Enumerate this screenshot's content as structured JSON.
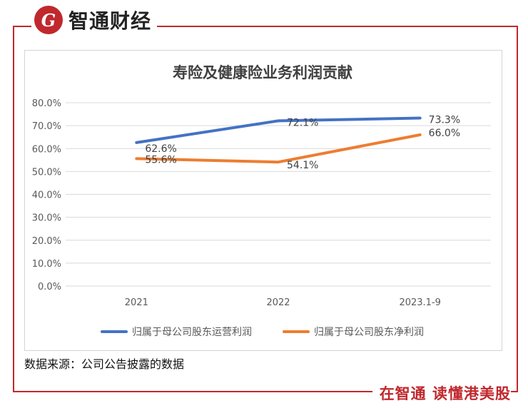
{
  "header": {
    "brand": "智通财经",
    "logo_glyph": "G"
  },
  "footer": {
    "source": "数据来源：公司公告披露的数据",
    "slogan": "在智通  读懂港美股"
  },
  "colors": {
    "brand_red": "#c0282d",
    "series1": "#4472c4",
    "series2": "#ed7d31"
  },
  "chart_data": {
    "type": "line",
    "title": "寿险及健康险业务利润贡献",
    "categories": [
      "2021",
      "2022",
      "2023.1-9"
    ],
    "ylim": [
      0,
      80
    ],
    "yticks": [
      "0.0%",
      "10.0%",
      "20.0%",
      "30.0%",
      "40.0%",
      "50.0%",
      "60.0%",
      "70.0%",
      "80.0%"
    ],
    "grid": true,
    "legend_position": "bottom",
    "series": [
      {
        "name": "归属于母公司股东运营利润",
        "values": [
          62.6,
          72.1,
          73.3
        ],
        "labels": [
          "62.6%",
          "72.1%",
          "73.3%"
        ]
      },
      {
        "name": "归属于母公司股东净利润",
        "values": [
          55.6,
          54.1,
          66.0
        ],
        "labels": [
          "55.6%",
          "54.1%",
          "66.0%"
        ]
      }
    ]
  }
}
